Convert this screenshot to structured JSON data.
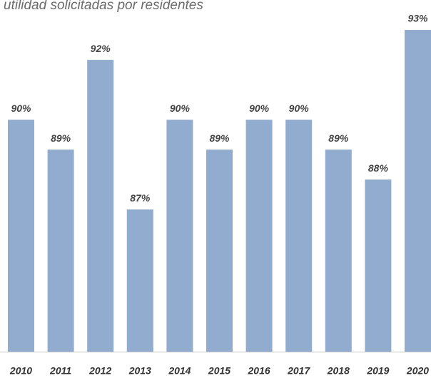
{
  "chart_data": {
    "type": "bar",
    "title": "utilidad solicitadas por residentes",
    "categories": [
      "2010",
      "2011",
      "2012",
      "2013",
      "2014",
      "2015",
      "2016",
      "2017",
      "2018",
      "2019",
      "2020"
    ],
    "values": [
      90,
      89,
      92,
      87,
      90,
      89,
      90,
      90,
      89,
      88,
      93
    ],
    "value_labels": [
      "90%",
      "89%",
      "92%",
      "87%",
      "90%",
      "89%",
      "90%",
      "90%",
      "89%",
      "88%",
      "93%"
    ],
    "color": "#91acce",
    "ylim": [
      82.25,
      94
    ],
    "grid": false
  }
}
